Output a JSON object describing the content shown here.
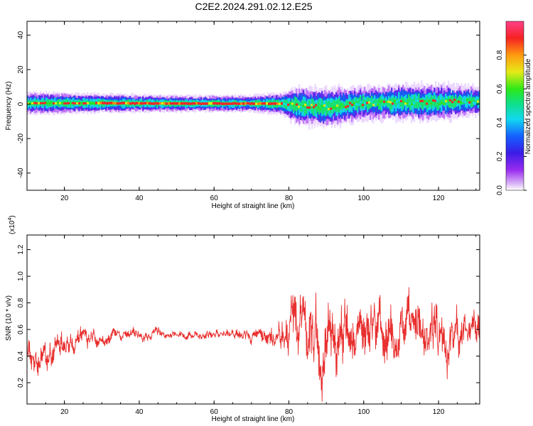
{
  "figure": {
    "title": "C2E2.2024.291.02.12.E25"
  },
  "chart_data": [
    {
      "type": "heatmap",
      "xlabel": "Height of straight line (km)",
      "ylabel": "Frequency (Hz)",
      "xlim": [
        10,
        131
      ],
      "ylim": [
        -50,
        48
      ],
      "x_ticks": [
        20,
        40,
        60,
        80,
        100,
        120
      ],
      "y_ticks": [
        -40,
        -20,
        0,
        20,
        40
      ],
      "colorbar": {
        "label": "Normalized spectral amplitude",
        "range": [
          0,
          1
        ],
        "ticks": [
          "0.0",
          "0.2",
          "0.4",
          "0.6",
          "0.8"
        ],
        "colormap": "rainbow (purple-blue-cyan-green-yellow-orange-red-pink)"
      },
      "band_profile": [
        {
          "x": 10,
          "center": 0.5,
          "halfwidth": 4
        },
        {
          "x": 30,
          "center": 0.5,
          "halfwidth": 3.5
        },
        {
          "x": 50,
          "center": 0.3,
          "halfwidth": 3
        },
        {
          "x": 70,
          "center": 0.3,
          "halfwidth": 3
        },
        {
          "x": 78,
          "center": 0.2,
          "halfwidth": 4
        },
        {
          "x": 82,
          "center": -1,
          "halfwidth": 7
        },
        {
          "x": 90,
          "center": -2,
          "halfwidth": 7
        },
        {
          "x": 100,
          "center": 0.5,
          "halfwidth": 6
        },
        {
          "x": 110,
          "center": 1,
          "halfwidth": 6.5
        },
        {
          "x": 120,
          "center": 1,
          "halfwidth": 6.5
        },
        {
          "x": 131,
          "center": 2,
          "halfwidth": 5
        }
      ]
    },
    {
      "type": "line",
      "xlabel": "Height of straight line (km)",
      "ylabel": "SNR (10 * v/v)",
      "y_scale_label": "(x10",
      "y_scale_exponent": "4",
      "y_scale_close": ")",
      "xlim": [
        10,
        131
      ],
      "ylim": [
        0.04,
        1.31
      ],
      "x_ticks": [
        20,
        40,
        60,
        80,
        100,
        120
      ],
      "y_ticks": [
        "0.2",
        "0.4",
        "0.6",
        "0.8",
        "1.0",
        "1.2"
      ],
      "series": [
        {
          "color": "#e8302f",
          "envelope": [
            {
              "x": 10,
              "mean": 0.45,
              "spread": 0.17
            },
            {
              "x": 15,
              "mean": 0.46,
              "spread": 0.16
            },
            {
              "x": 20,
              "mean": 0.48,
              "spread": 0.14
            },
            {
              "x": 25,
              "mean": 0.51,
              "spread": 0.1
            },
            {
              "x": 30,
              "mean": 0.54,
              "spread": 0.07
            },
            {
              "x": 40,
              "mean": 0.56,
              "spread": 0.05
            },
            {
              "x": 50,
              "mean": 0.56,
              "spread": 0.04
            },
            {
              "x": 60,
              "mean": 0.56,
              "spread": 0.04
            },
            {
              "x": 68,
              "mean": 0.55,
              "spread": 0.05
            },
            {
              "x": 72,
              "mean": 0.55,
              "spread": 0.08
            },
            {
              "x": 78,
              "mean": 0.57,
              "spread": 0.14
            },
            {
              "x": 82,
              "mean": 0.6,
              "spread": 0.3
            },
            {
              "x": 90,
              "mean": 0.6,
              "spread": 0.4
            },
            {
              "x": 100,
              "mean": 0.6,
              "spread": 0.26
            },
            {
              "x": 110,
              "mean": 0.58,
              "spread": 0.3
            },
            {
              "x": 120,
              "mean": 0.58,
              "spread": 0.3
            },
            {
              "x": 131,
              "mean": 0.55,
              "spread": 0.18
            }
          ]
        }
      ]
    }
  ]
}
